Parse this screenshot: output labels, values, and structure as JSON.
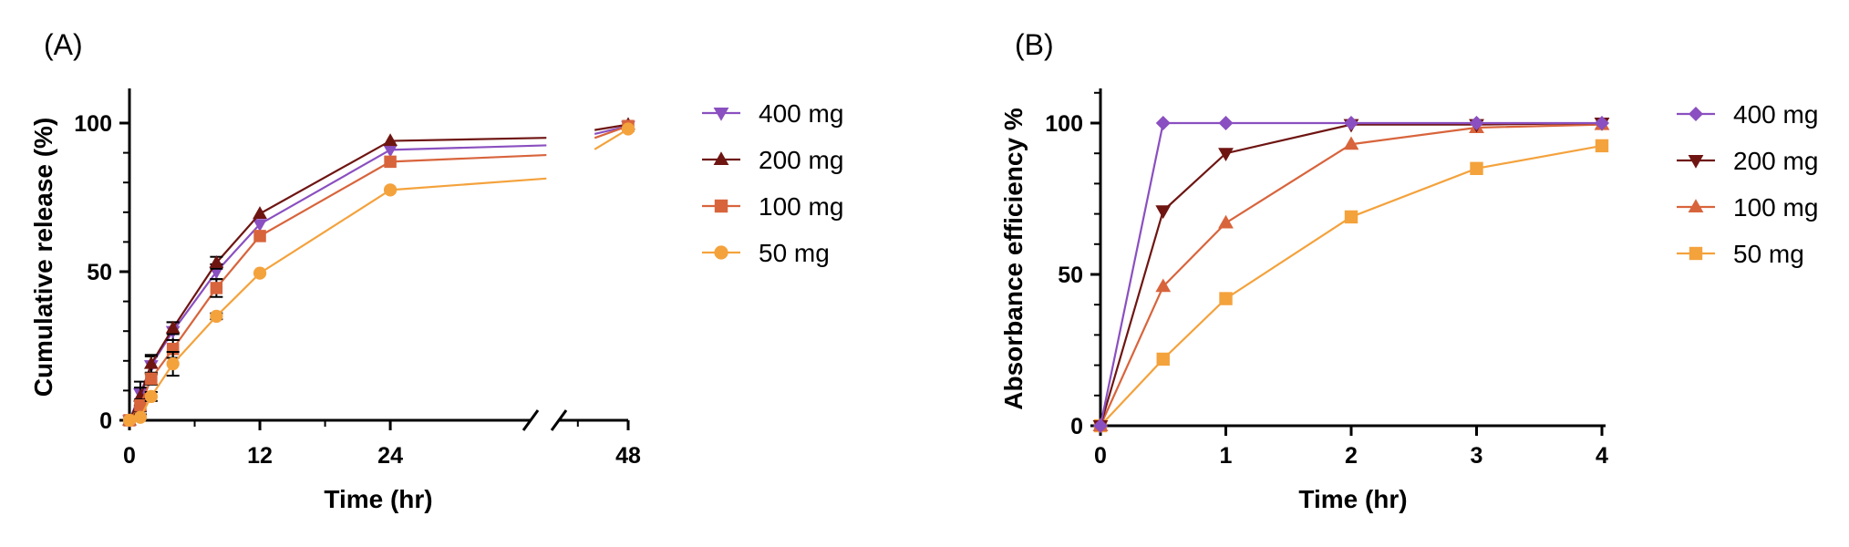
{
  "chart_data": [
    {
      "type": "line",
      "panel_label": "(A)",
      "xlabel": "Time (hr)",
      "ylabel": "Cumulative release (%)",
      "x_ticks": [
        "0",
        "12",
        "24",
        "48"
      ],
      "y_ticks": [
        "0",
        "50",
        "100"
      ],
      "ylim": [
        0,
        110
      ],
      "x_axis_break": [
        28,
        40
      ],
      "grid": false,
      "legend_position": "right",
      "series": [
        {
          "name": "400 mg",
          "color": "#8a4fc0",
          "marker": "triangle-down",
          "x": [
            0,
            1,
            2,
            4,
            8,
            12,
            24,
            48
          ],
          "y": [
            0,
            9,
            18.5,
            30,
            50,
            66,
            91,
            99
          ],
          "err": [
            0,
            4,
            3,
            3,
            2.5,
            0,
            0,
            0
          ]
        },
        {
          "name": "200 mg",
          "color": "#6e1512",
          "marker": "triangle-up",
          "x": [
            0,
            1,
            2,
            4,
            8,
            12,
            24,
            48
          ],
          "y": [
            0,
            8,
            19,
            31,
            53,
            69.5,
            94,
            99.5
          ],
          "err": [
            0,
            3,
            3,
            2,
            2,
            0,
            0,
            0
          ]
        },
        {
          "name": "100 mg",
          "color": "#d8643c",
          "marker": "square",
          "x": [
            0,
            1,
            2,
            4,
            8,
            12,
            24,
            48
          ],
          "y": [
            0,
            5,
            14,
            24,
            44.5,
            62,
            87,
            99
          ],
          "err": [
            0,
            2,
            2,
            3,
            3,
            0,
            0,
            0
          ]
        },
        {
          "name": "50 mg",
          "color": "#f4a23c",
          "marker": "circle",
          "x": [
            0,
            1,
            2,
            4,
            8,
            12,
            24,
            48
          ],
          "y": [
            0,
            1,
            8,
            19,
            35,
            49.5,
            77.5,
            98
          ],
          "err": [
            0,
            1,
            1.5,
            4,
            1,
            0,
            0,
            0
          ]
        }
      ]
    },
    {
      "type": "line",
      "panel_label": "(B)",
      "xlabel": "Time (hr)",
      "ylabel": "Absorbance efficiency %",
      "x_ticks": [
        "0",
        "1",
        "2",
        "3",
        "4"
      ],
      "y_ticks": [
        "0",
        "50",
        "100"
      ],
      "xlim": [
        0,
        4
      ],
      "ylim": [
        0,
        112
      ],
      "grid": false,
      "legend_position": "right",
      "series": [
        {
          "name": "400 mg",
          "color": "#8a4fc0",
          "marker": "diamond",
          "x": [
            0,
            0.5,
            1,
            2,
            3,
            4
          ],
          "y": [
            0,
            100,
            100,
            100,
            100,
            100
          ]
        },
        {
          "name": "200 mg",
          "color": "#6e1512",
          "marker": "triangle-down",
          "x": [
            0,
            0.5,
            1,
            2,
            3,
            4
          ],
          "y": [
            0,
            71,
            90,
            99.5,
            99.5,
            100
          ]
        },
        {
          "name": "100 mg",
          "color": "#d8643c",
          "marker": "triangle-up",
          "x": [
            0,
            0.5,
            1,
            2,
            3,
            4
          ],
          "y": [
            0,
            46,
            67,
            93,
            98.5,
            99.5
          ]
        },
        {
          "name": "50 mg",
          "color": "#f4a23c",
          "marker": "square",
          "x": [
            0,
            0.5,
            1,
            2,
            3,
            4
          ],
          "y": [
            0,
            22,
            42,
            69,
            85,
            92.5
          ]
        }
      ]
    }
  ]
}
